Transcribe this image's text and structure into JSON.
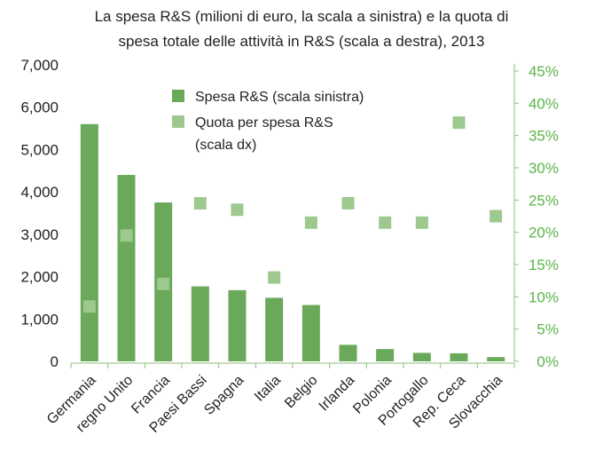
{
  "chart_data": {
    "type": "bar",
    "title_lines": [
      "La spesa R&S (milioni di euro, la scala a sinistra) e la quota di",
      "spesa totale delle attività in R&S (scala a destra), 2013"
    ],
    "categories": [
      "Germania",
      "regno Unito",
      "Francia",
      "Paesi Bassi",
      "Spagna",
      "Italia",
      "Belgio",
      "Irlanda",
      "Polonia",
      "Portogallo",
      "Rep. Ceca",
      "Slovacchia"
    ],
    "series": [
      {
        "name": "Spesa R&S (scala sinistra)",
        "axis": "left",
        "kind": "bar",
        "color": "#6aa85a",
        "values": [
          5600,
          4400,
          3750,
          1770,
          1680,
          1500,
          1330,
          390,
          290,
          200,
          190,
          100
        ]
      },
      {
        "name": "Quota per spesa R&S (scala dx)",
        "axis": "right",
        "kind": "marker",
        "color": "#9dc98e",
        "values": [
          8.5,
          19.5,
          12,
          24.5,
          23.5,
          13,
          21.5,
          24.5,
          21.5,
          21.5,
          37,
          22.5
        ]
      }
    ],
    "y_left": {
      "ylim": [
        0,
        7000
      ],
      "ticks": [
        0,
        1000,
        2000,
        3000,
        4000,
        5000,
        6000,
        7000
      ],
      "tick_labels": [
        "0",
        "1,000",
        "2,000",
        "3,000",
        "4,000",
        "5,000",
        "6,000",
        "7,000"
      ]
    },
    "y_right": {
      "ylim": [
        0,
        45
      ],
      "ticks": [
        0,
        5,
        10,
        15,
        20,
        25,
        30,
        35,
        40,
        45
      ],
      "tick_labels": [
        "0%",
        "5%",
        "10%",
        "15%",
        "20%",
        "25%",
        "30%",
        "35%",
        "40%",
        "45%"
      ]
    },
    "legend": {
      "position": "top-center",
      "entries": [
        {
          "label_lines": [
            "Spesa R&S (scala sinistra)"
          ],
          "color": "#6aa85a"
        },
        {
          "label_lines": [
            "Quota per spesa R&S",
            "(scala dx)"
          ],
          "color": "#9dc98e"
        }
      ]
    },
    "colors": {
      "left_axis_text": "#222222",
      "right_axis_text": "#5cb34a",
      "axis_line": "#8cbf7a"
    },
    "grid": false
  }
}
